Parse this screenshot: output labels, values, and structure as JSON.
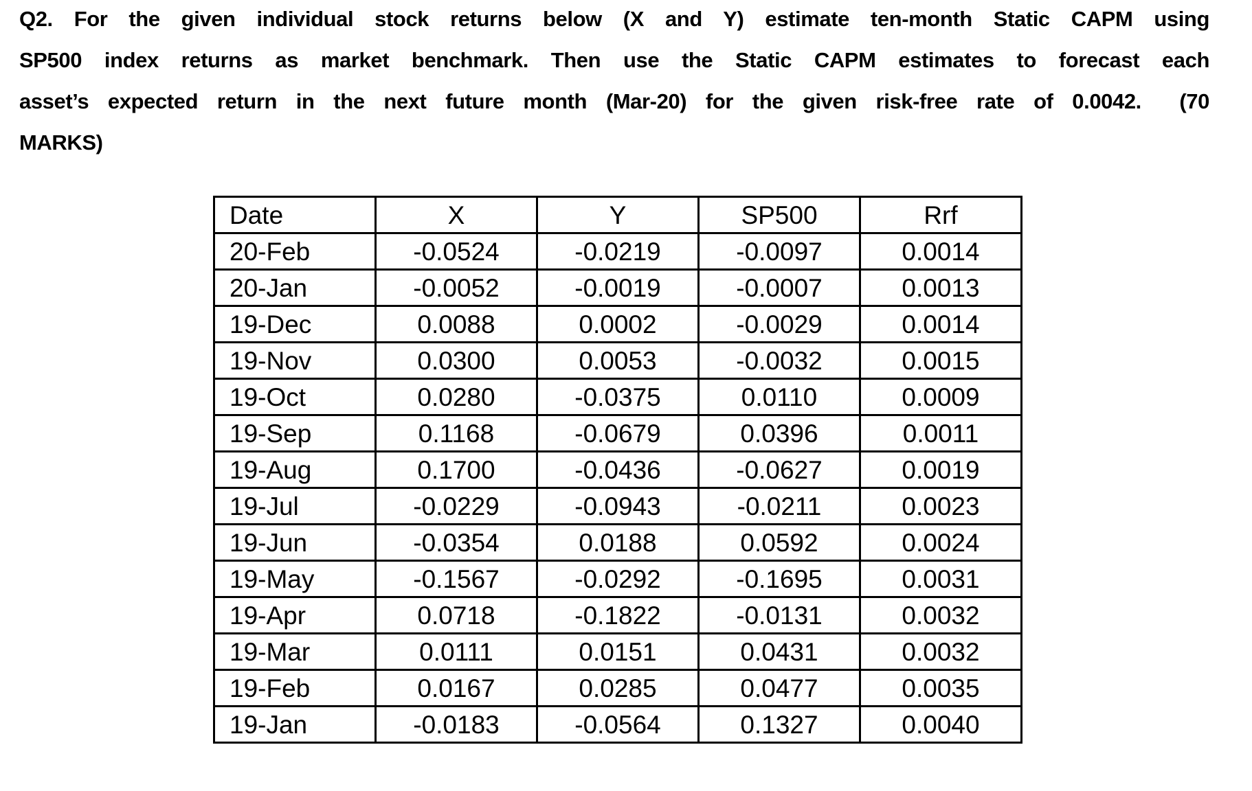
{
  "question": {
    "lines": [
      "Q2. For the given individual stock returns below (X and Y) estimate ten-month Static CAPM using",
      "SP500 index returns as market benchmark. Then use the Static CAPM estimates to forecast each",
      "asset’s expected return in the next future month (Mar-20) for the given risk-free rate of 0.0042.  (70",
      "MARKS)"
    ]
  },
  "table": {
    "headers": [
      "Date",
      "X",
      "Y",
      "SP500",
      "Rrf"
    ],
    "rows": [
      [
        "20-Feb",
        "-0.0524",
        "-0.0219",
        "-0.0097",
        "0.0014"
      ],
      [
        "20-Jan",
        "-0.0052",
        "-0.0019",
        "-0.0007",
        "0.0013"
      ],
      [
        "19-Dec",
        "0.0088",
        "0.0002",
        "-0.0029",
        "0.0014"
      ],
      [
        "19-Nov",
        "0.0300",
        "0.0053",
        "-0.0032",
        "0.0015"
      ],
      [
        "19-Oct",
        "0.0280",
        "-0.0375",
        "0.0110",
        "0.0009"
      ],
      [
        "19-Sep",
        "0.1168",
        "-0.0679",
        "0.0396",
        "0.0011"
      ],
      [
        "19-Aug",
        "0.1700",
        "-0.0436",
        "-0.0627",
        "0.0019"
      ],
      [
        "19-Jul",
        "-0.0229",
        "-0.0943",
        "-0.0211",
        "0.0023"
      ],
      [
        "19-Jun",
        "-0.0354",
        "0.0188",
        "0.0592",
        "0.0024"
      ],
      [
        "19-May",
        "-0.1567",
        "-0.0292",
        "-0.1695",
        "0.0031"
      ],
      [
        "19-Apr",
        "0.0718",
        "-0.1822",
        "-0.0131",
        "0.0032"
      ],
      [
        "19-Mar",
        "0.0111",
        "0.0151",
        "0.0431",
        "0.0032"
      ],
      [
        "19-Feb",
        "0.0167",
        "0.0285",
        "0.0477",
        "0.0035"
      ],
      [
        "19-Jan",
        "-0.0183",
        "-0.0564",
        "0.1327",
        "0.0040"
      ]
    ]
  }
}
